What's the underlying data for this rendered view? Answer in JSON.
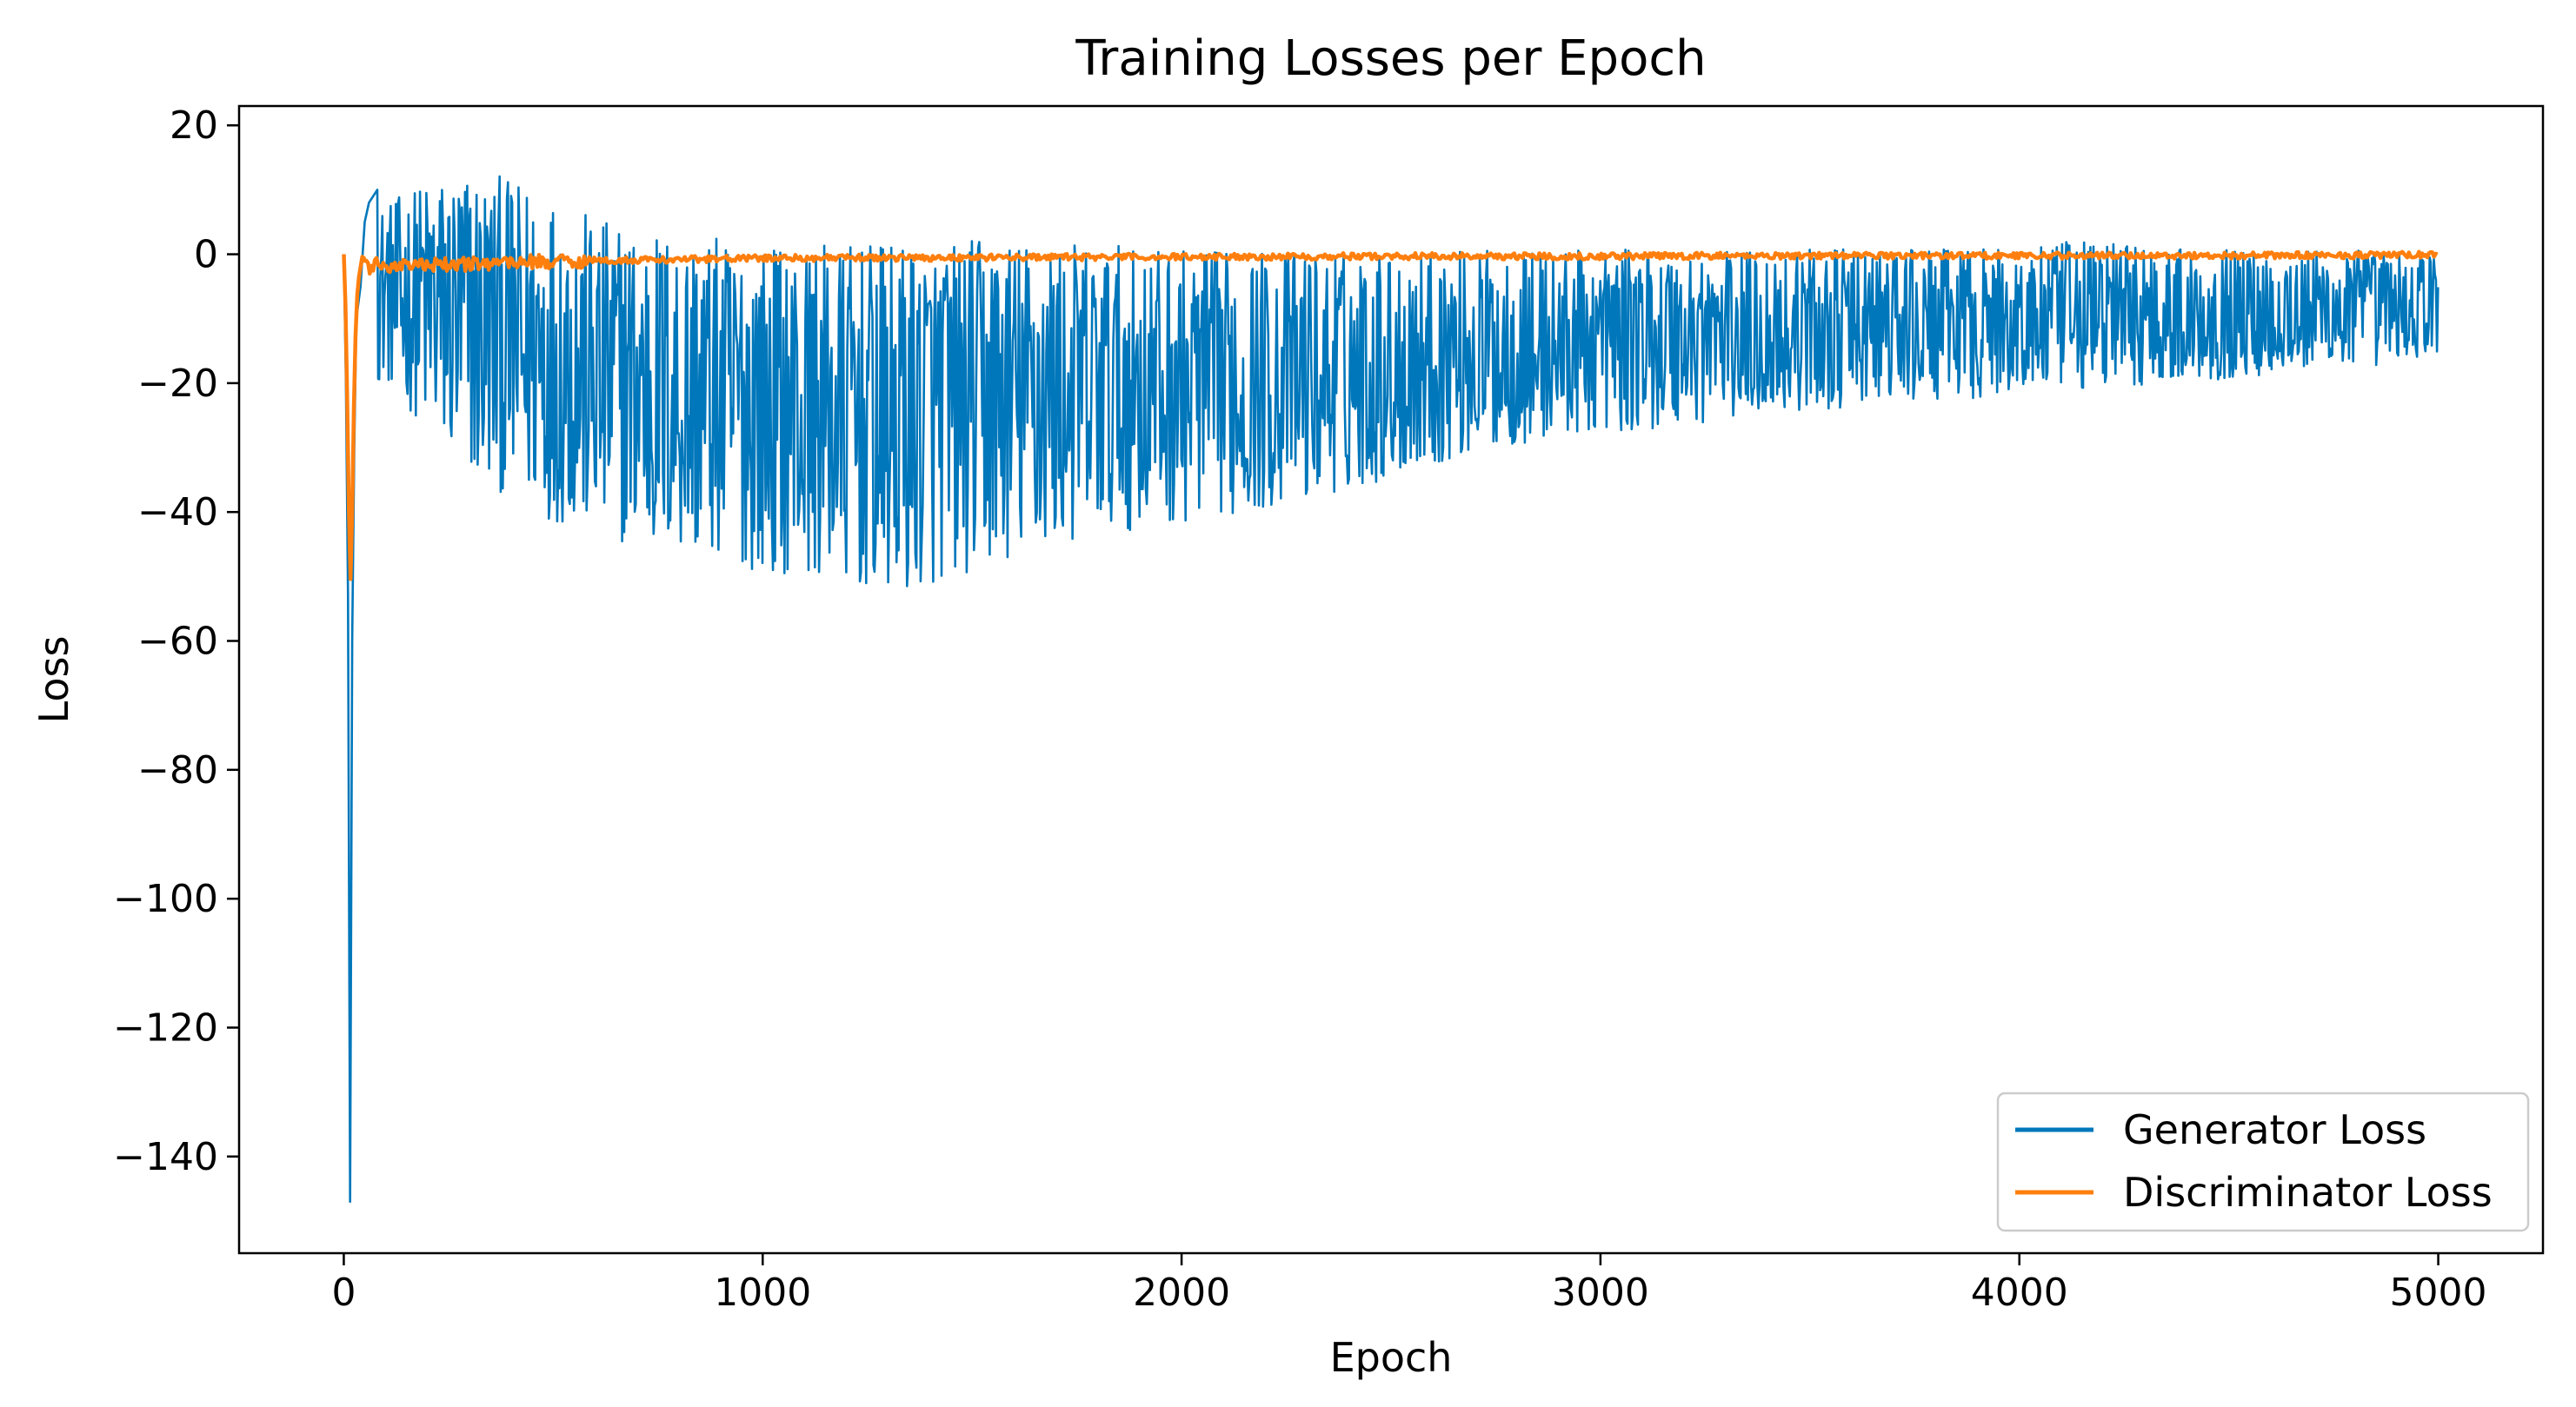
{
  "chart_data": {
    "type": "line",
    "title": "Training Losses per Epoch",
    "xlabel": "Epoch",
    "ylabel": "Loss",
    "xlim": [
      -250,
      5250
    ],
    "ylim": [
      -155,
      23
    ],
    "xticks": [
      0,
      1000,
      2000,
      3000,
      4000,
      5000
    ],
    "yticks": [
      20,
      0,
      -20,
      -40,
      -60,
      -80,
      -100,
      -120,
      -140
    ],
    "xtick_labels": [
      "0",
      "1000",
      "2000",
      "3000",
      "4000",
      "5000"
    ],
    "ytick_labels": [
      "20",
      "0",
      "−20",
      "−40",
      "−60",
      "−80",
      "−100",
      "−120",
      "−140"
    ],
    "legend": {
      "position": "lower-right"
    },
    "grid": false,
    "series": [
      {
        "name": "Generator Loss",
        "color": "#0077bb",
        "envelope": {
          "x": [
            100,
            200,
            300,
            400,
            500,
            600,
            700,
            800,
            900,
            1000,
            1100,
            1200,
            1300,
            1400,
            1500,
            1600,
            1800,
            2000,
            2200,
            2400,
            2600,
            2800,
            3000,
            3200,
            3400,
            3600,
            3800,
            4000,
            4200,
            4400,
            4600,
            4800,
            5000
          ],
          "high": [
            8,
            12,
            14,
            12,
            10,
            6,
            5,
            4,
            3,
            2,
            2,
            2,
            2,
            2,
            3,
            3,
            2,
            1,
            1,
            1,
            1,
            1,
            1,
            1,
            1,
            1,
            1,
            1,
            3,
            1,
            1,
            1,
            0
          ],
          "low": [
            -20,
            -28,
            -36,
            -38,
            -42,
            -44,
            -46,
            -47,
            -48,
            -50,
            -50,
            -52,
            -54,
            -52,
            -50,
            -48,
            -44,
            -42,
            -40,
            -37,
            -33,
            -30,
            -28,
            -27,
            -25,
            -24,
            -23,
            -22,
            -21,
            -20,
            -19,
            -18,
            -16
          ]
        },
        "spike": {
          "x": [
            0,
            5,
            10,
            15,
            20,
            25,
            30,
            40,
            50,
            60,
            80
          ],
          "y": [
            0,
            -20,
            -53,
            -147,
            -60,
            -30,
            -10,
            -5,
            5,
            8,
            10
          ]
        }
      },
      {
        "name": "Discriminator Loss",
        "color": "#ff7f0e",
        "x": [
          0,
          5,
          10,
          15,
          20,
          25,
          30,
          35,
          40,
          45,
          50,
          60,
          80,
          100,
          150,
          200,
          300,
          400,
          600,
          800,
          1000,
          1500,
          2000,
          2500,
          3000,
          3500,
          4000,
          4500,
          5000
        ],
        "y": [
          0,
          -10,
          -30,
          -53,
          -40,
          -20,
          -8,
          -4,
          -2,
          0,
          -1,
          -2,
          -1.5,
          -2,
          -1.5,
          -1.8,
          -1.5,
          -1.2,
          -1,
          -0.8,
          -0.6,
          -0.5,
          -0.4,
          -0.3,
          -0.3,
          -0.2,
          -0.2,
          -0.2,
          -0.1
        ]
      }
    ]
  }
}
